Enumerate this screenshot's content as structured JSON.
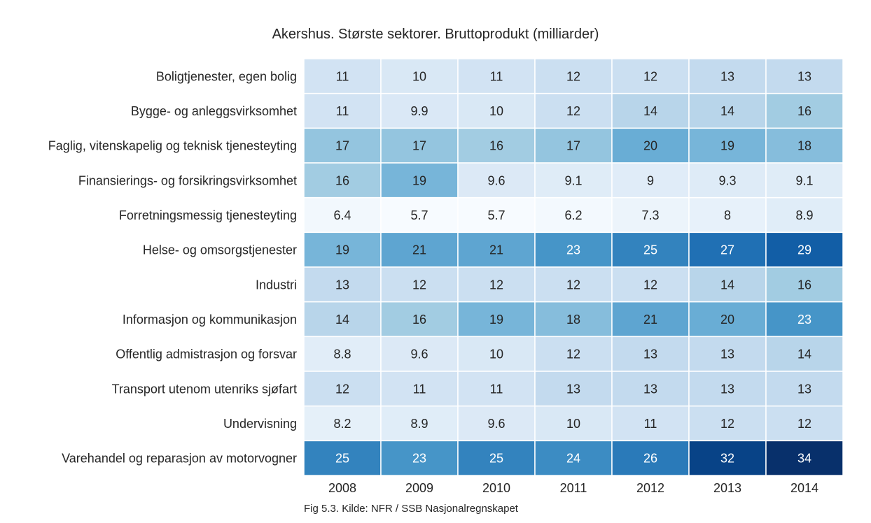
{
  "chart_data": {
    "type": "heatmap",
    "title": "Akershus. Største sektorer. Bruttoprodukt (milliarder)",
    "x": [
      "2008",
      "2009",
      "2010",
      "2011",
      "2012",
      "2013",
      "2014"
    ],
    "y": [
      "Boligtjenester, egen bolig",
      "Bygge- og anleggsvirksomhet",
      "Faglig, vitenskapelig og teknisk tjenesteyting",
      "Finansierings- og forsikringsvirksomhet",
      "Forretningsmessig tjenesteyting",
      "Helse- og omsorgstjenester",
      "Industri",
      "Informasjon og kommunikasjon",
      "Offentlig admistrasjon og forsvar",
      "Transport utenom utenriks sjøfart",
      "Undervisning",
      "Varehandel og reparasjon av motorvogner"
    ],
    "values": [
      [
        11,
        10,
        11,
        12,
        12,
        13,
        13
      ],
      [
        11,
        9.9,
        10,
        12,
        14,
        14,
        16
      ],
      [
        17,
        17,
        16,
        17,
        20,
        19,
        18
      ],
      [
        16,
        19,
        9.6,
        9.1,
        9,
        9.3,
        9.1
      ],
      [
        6.4,
        5.7,
        5.7,
        6.2,
        7.3,
        8,
        8.9
      ],
      [
        19,
        21,
        21,
        23,
        25,
        27,
        29
      ],
      [
        13,
        12,
        12,
        12,
        12,
        14,
        16
      ],
      [
        14,
        16,
        19,
        18,
        21,
        20,
        23
      ],
      [
        8.8,
        9.6,
        10,
        12,
        13,
        13,
        14
      ],
      [
        12,
        11,
        11,
        13,
        13,
        13,
        13
      ],
      [
        8.2,
        8.9,
        9.6,
        10,
        11,
        12,
        12
      ],
      [
        25,
        23,
        25,
        24,
        26,
        32,
        34
      ]
    ],
    "colormap": "Blues",
    "annotated": true,
    "value_range": [
      5.7,
      34
    ],
    "colorbar": false,
    "grid": false,
    "cell_border_color": "#ffffff"
  },
  "caption": "Fig 5.3. Kilde: NFR / SSB Nasjonalregnskapet"
}
